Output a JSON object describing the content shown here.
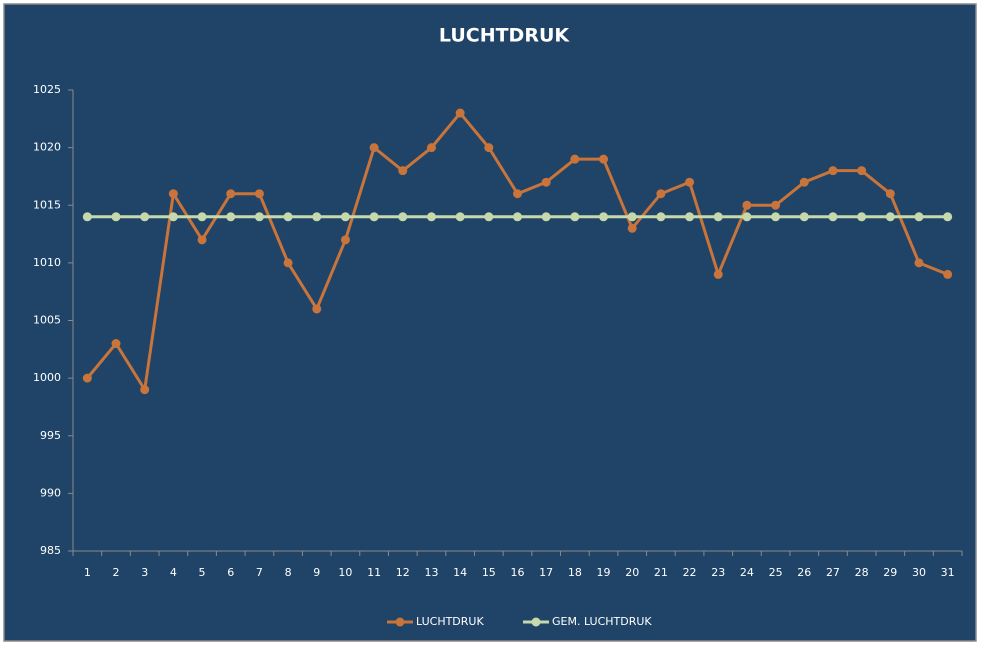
{
  "chart_data": {
    "type": "line",
    "title": "LUCHTDRUK",
    "categories": [
      "1",
      "2",
      "3",
      "4",
      "5",
      "6",
      "7",
      "8",
      "9",
      "10",
      "11",
      "12",
      "13",
      "14",
      "15",
      "16",
      "17",
      "18",
      "19",
      "20",
      "21",
      "22",
      "23",
      "24",
      "25",
      "26",
      "27",
      "28",
      "29",
      "30",
      "31"
    ],
    "series": [
      {
        "name": "LUCHTDRUK",
        "color": "#c8743a",
        "values": [
          1000,
          1003,
          999,
          1016,
          1012,
          1016,
          1016,
          1010,
          1006,
          1012,
          1020,
          1018,
          1020,
          1023,
          1020,
          1016,
          1017,
          1019,
          1019,
          1013,
          1016,
          1017,
          1009,
          1015,
          1015,
          1017,
          1018,
          1018,
          1016,
          1010,
          1009
        ]
      },
      {
        "name": "GEM. LUCHTDRUK",
        "color": "#c6d9ac",
        "values": [
          1014,
          1014,
          1014,
          1014,
          1014,
          1014,
          1014,
          1014,
          1014,
          1014,
          1014,
          1014,
          1014,
          1014,
          1014,
          1014,
          1014,
          1014,
          1014,
          1014,
          1014,
          1014,
          1014,
          1014,
          1014,
          1014,
          1014,
          1014,
          1014,
          1014,
          1014
        ]
      }
    ],
    "ylim": [
      985,
      1025
    ],
    "yticks": [
      985,
      990,
      995,
      1000,
      1005,
      1010,
      1015,
      1020,
      1025
    ],
    "grid": false,
    "legend": "bottom"
  }
}
